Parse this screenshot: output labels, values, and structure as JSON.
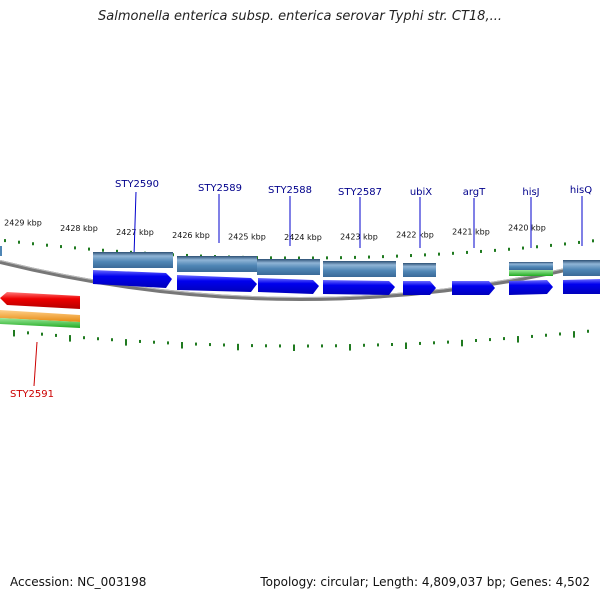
{
  "title": "Salmonella enterica subsp. enterica serovar Typhi str. CT18,...",
  "footer": {
    "accession": "Accession: NC_003198",
    "summary": "Topology: circular; Length: 4,809,037 bp; Genes: 4,502"
  },
  "colors": {
    "gene_blue": "#0000ee",
    "cds_steel": "#4f86b5",
    "gene_red": "#ee0000",
    "gene_orange": "#f39a1e",
    "gene_green": "#33bb33",
    "tick_green": "#1f7a1f",
    "backbone": "#888888",
    "label_blue": "#00008b",
    "label_red": "#cc0000"
  },
  "ruler": {
    "unit": "kbp",
    "ticks": [
      2429,
      2428,
      2427,
      2426,
      2425,
      2424,
      2423,
      2422,
      2421,
      2420
    ],
    "tick_labels": [
      "2429 kbp",
      "2428 kbp",
      "2427 kbp",
      "2426 kbp",
      "2425 kbp",
      "2424 kbp",
      "2423 kbp",
      "2422 kbp",
      "2421 kbp",
      "2420 kbp"
    ]
  },
  "genes_forward": [
    "STY2590",
    "STY2589",
    "STY2588",
    "STY2587",
    "ubiX",
    "argT",
    "hisJ",
    "hisQ"
  ],
  "genes_reverse": [
    "STY2591"
  ]
}
